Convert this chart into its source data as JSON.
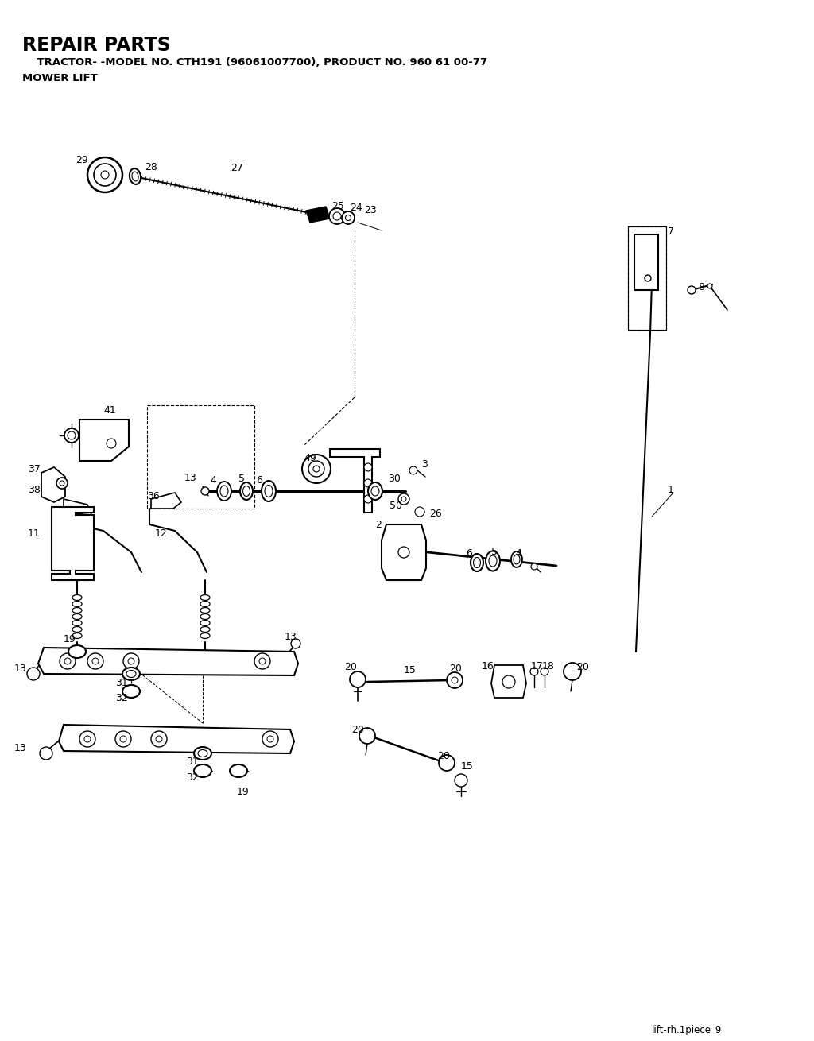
{
  "title_main": "REPAIR PARTS",
  "title_sub1": "    TRACTOR- -MODEL NO. CTH191 (96061007700), PRODUCT NO. 960 61 00-77",
  "title_sub2": "MOWER LIFT",
  "footer": "lift-rh.1piece_9",
  "bg_color": "#ffffff"
}
